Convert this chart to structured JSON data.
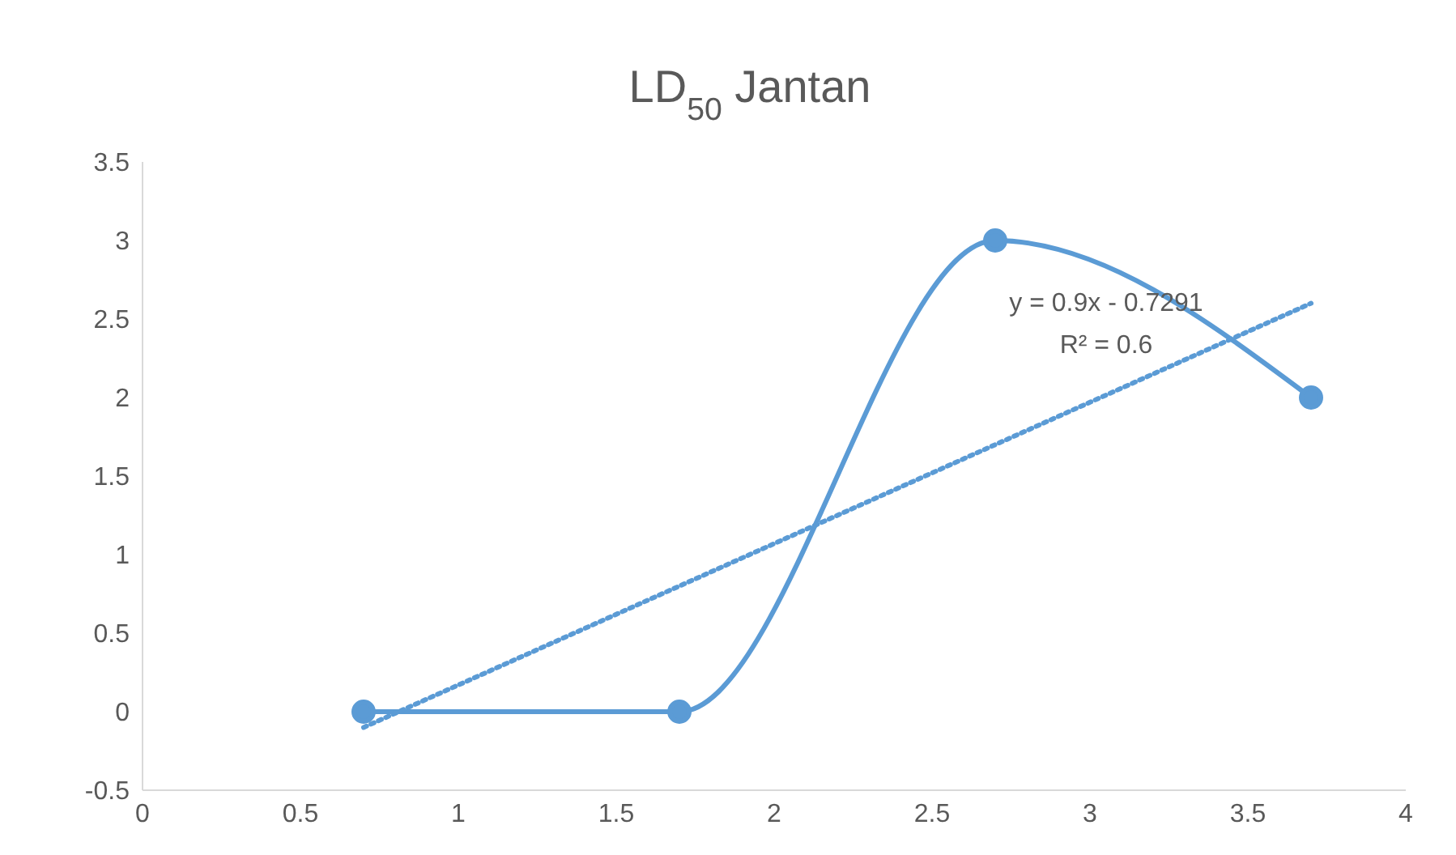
{
  "chart_data": {
    "type": "line",
    "title": "LD$_{50}$ Jantan",
    "series": [
      {
        "color": "#5b9bd5",
        "x": [
          0.7,
          1.7,
          2.7,
          3.7
        ],
        "values": [
          0,
          0,
          3,
          2
        ],
        "marker": "circle",
        "line_style": "solid"
      },
      {
        "type": "line",
        "color": "#5b9bd5",
        "x": [
          0.7,
          3.7
        ],
        "values": [
          -0.1,
          2.6
        ],
        "marker": "none",
        "line_style": "dotted"
      }
    ],
    "xlim": [
      0,
      4
    ],
    "xticks": [
      0,
      0.5,
      1,
      1.5,
      2,
      2.5,
      3,
      3.5,
      4
    ],
    "ylim": [
      -0.5,
      3.5
    ],
    "yticks": [
      -0.5,
      0,
      0.5,
      1,
      1.5,
      2,
      2.5,
      3,
      3.5
    ],
    "annotations": [
      "y = 0.9x - 0.7291",
      "R² = 0.6"
    ],
    "grid": false
  }
}
